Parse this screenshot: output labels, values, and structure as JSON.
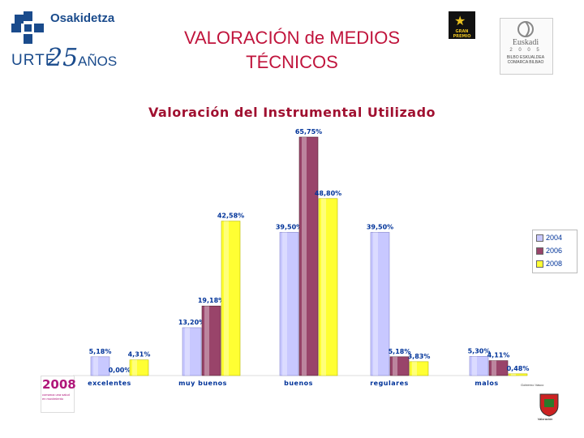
{
  "header": {
    "title_line1": "VALORACIÓN de MEDIOS",
    "title_line2": "TÉCNICOS",
    "org_name": "Osakidetza",
    "anniv_urte": "URTE",
    "anniv_number": "25",
    "anniv_anos": "AÑOS"
  },
  "logos": {
    "euskadi_name": "Euskadi",
    "euskadi_year": "2 0 0 5",
    "euskadi_sub1": "BILBO ESKUALDEA",
    "euskadi_sub2": "COMARCA BILBAO",
    "left_logo_number": "2008",
    "left_logo_text": "comarca una salud en movimiento",
    "badge_text": "GRAN PREMIO",
    "right_bottom_text": "Valoración",
    "right_caption": "Gobierno Vasco"
  },
  "colors": {
    "s2004": "#c8c8ff",
    "s2006": "#99446a",
    "s2008": "#ffff33",
    "title_red": "#c0143c",
    "label_blue": "#003399"
  },
  "chart_data": {
    "type": "bar",
    "title": "Valoración del Instrumental Utilizado",
    "categories": [
      "excelentes",
      "muy buenos",
      "buenos",
      "regulares",
      "malos"
    ],
    "series": [
      {
        "name": "2004",
        "values": [
          5.18,
          13.2,
          39.5,
          39.5,
          5.3
        ],
        "labels": [
          "5,18%",
          "13,20%",
          "39,50%",
          "39,50%",
          "5,30%"
        ]
      },
      {
        "name": "2006",
        "values": [
          0.0,
          19.18,
          65.75,
          5.18,
          4.11
        ],
        "labels": [
          "0,00%",
          "19,18%",
          "65,75%",
          "5,18%",
          "4,11%"
        ]
      },
      {
        "name": "2008",
        "values": [
          4.31,
          42.58,
          48.8,
          3.83,
          0.48
        ],
        "labels": [
          "4,31%",
          "42,58%",
          "48,80%",
          "3,83%",
          "0,48%"
        ]
      }
    ],
    "ylim": [
      0,
      70
    ],
    "grid": false,
    "legend": "right"
  }
}
